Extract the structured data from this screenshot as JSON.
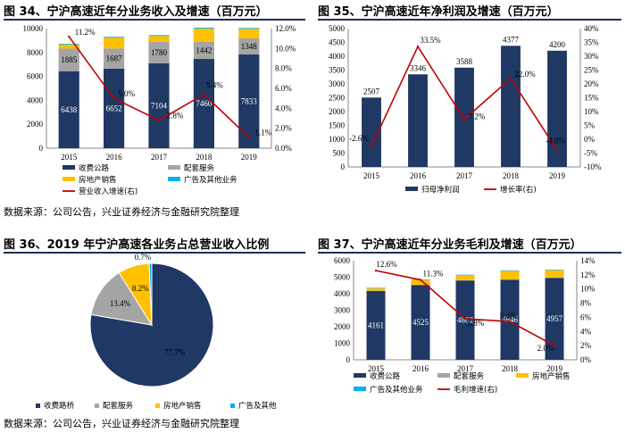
{
  "titles": {
    "fig34": "图 34、宁沪高速近年分业务收入及增速（百万元）",
    "fig35": "图 35、宁沪高速近年净利润及增速（百万元）",
    "fig36": "图 36、2019 年宁沪高速各业务占总营业收入比例",
    "fig37": "图 37、宁沪高速近年分业务毛利及增速（百万元）"
  },
  "sources": {
    "top": "数据来源：公司公告，兴业证券经济与金融研究院整理",
    "bottom": "数据来源：公司公告，兴业证券经济与金融研究院整理"
  },
  "colors": {
    "navy": "#1f3864",
    "gray": "#a5a5a5",
    "gold": "#ffc000",
    "cyan": "#00b0f0",
    "red": "#c00000",
    "rule": "#1f2d5c"
  },
  "chart_data": [
    {
      "id": "fig34",
      "type": "bar",
      "stacked": true,
      "title": "图 34、宁沪高速近年分业务收入及增速（百万元）",
      "categories": [
        "2015",
        "2016",
        "2017",
        "2018",
        "2019"
      ],
      "series": [
        {
          "name": "收费公路",
          "values": [
            6438,
            6652,
            7104,
            7460,
            7833
          ],
          "labels": [
            "6438",
            "6652",
            "7104",
            "7460",
            "7833"
          ]
        },
        {
          "name": "配套服务",
          "values": [
            1885,
            1687,
            1780,
            1442,
            1348
          ],
          "labels": [
            "1885",
            "1687",
            "1780",
            "1442",
            "1348"
          ]
        },
        {
          "name": "房地产销售",
          "values": [
            350,
            900,
            500,
            1100,
            800
          ]
        },
        {
          "name": "广告及其他业务",
          "values": [
            60,
            70,
            70,
            70,
            70
          ]
        }
      ],
      "line": {
        "name": "营业收入增速(右)",
        "values": [
          11.2,
          5.0,
          2.8,
          5.4,
          1.1
        ],
        "labels": [
          "11.2%",
          "5.0%",
          "2.8%",
          "5.4%",
          "1.1%"
        ]
      },
      "ylim": [
        0,
        10000
      ],
      "yticks": [
        "0",
        "2000",
        "4000",
        "6000",
        "8000",
        "10000"
      ],
      "y2lim": [
        0,
        12
      ],
      "y2ticks": [
        "0.0%",
        "2.0%",
        "4.0%",
        "6.0%",
        "8.0%",
        "10.0%",
        "12.0%"
      ],
      "legend": [
        "收费公路",
        "配套服务",
        "房地产销售",
        "广告及其他业务",
        "营业收入增速(右)"
      ]
    },
    {
      "id": "fig35",
      "type": "bar",
      "title": "图 35、宁沪高速近年净利润及增速（百万元）",
      "categories": [
        "2015",
        "2016",
        "2017",
        "2018",
        "2019"
      ],
      "series": [
        {
          "name": "归母净利润",
          "values": [
            2507,
            3346,
            3588,
            4377,
            4200
          ],
          "labels": [
            "2507",
            "3346",
            "3588",
            "4377",
            "4200"
          ]
        }
      ],
      "line": {
        "name": "增长率(右)",
        "values": [
          -2.6,
          33.5,
          7.2,
          22.0,
          -4.0
        ],
        "labels": [
          "-2.6%",
          "33.5%",
          "7.2%",
          "22.0%",
          "-4.0%"
        ]
      },
      "ylim": [
        0,
        5000
      ],
      "yticks": [
        "0",
        "500",
        "1000",
        "1500",
        "2000",
        "2500",
        "3000",
        "3500",
        "4000",
        "4500",
        "5000"
      ],
      "y2lim": [
        -10,
        40
      ],
      "y2ticks": [
        "-10%",
        "-5%",
        "0%",
        "5%",
        "10%",
        "15%",
        "20%",
        "25%",
        "30%",
        "35%",
        "40%"
      ],
      "legend": [
        "归母净利润",
        "增长率(右)"
      ]
    },
    {
      "id": "fig36",
      "type": "pie",
      "title": "图 36、2019 年宁沪高速各业务占总营业收入比例",
      "slices": [
        {
          "name": "收费路桥",
          "value": 77.7,
          "label": "77.7%"
        },
        {
          "name": "配套服务",
          "value": 13.4,
          "label": "13.4%"
        },
        {
          "name": "房地产销售",
          "value": 8.2,
          "label": "8.2%"
        },
        {
          "name": "广告及其他",
          "value": 0.7,
          "label": "0.7%"
        }
      ],
      "legend": [
        "收费路桥",
        "配套服务",
        "房地产销售",
        "广告及其他"
      ]
    },
    {
      "id": "fig37",
      "type": "bar",
      "stacked": true,
      "title": "图 37、宁沪高速近年分业务毛利及增速（百万元）",
      "categories": [
        "2015",
        "2016",
        "2017",
        "2018",
        "2019"
      ],
      "series": [
        {
          "name": "收费公路",
          "values": [
            4161,
            4525,
            4802,
            4846,
            4957
          ],
          "labels": [
            "4161",
            "4525",
            "4802",
            "4846",
            "4957"
          ]
        },
        {
          "name": "配套服务",
          "values": [
            20,
            20,
            20,
            20,
            20
          ]
        },
        {
          "name": "房地产销售",
          "values": [
            150,
            300,
            300,
            520,
            450
          ]
        },
        {
          "name": "广告及其他业务",
          "values": [
            30,
            30,
            30,
            30,
            30
          ]
        }
      ],
      "line": {
        "name": "毛利增速(右)",
        "values": [
          12.6,
          11.3,
          5.8,
          5.4,
          2.0
        ],
        "labels": [
          "12.6%",
          "11.3%",
          "5.8%",
          "5.4%",
          "2.0%"
        ]
      },
      "ylim": [
        0,
        6000
      ],
      "yticks": [
        "0",
        "1000",
        "2000",
        "3000",
        "4000",
        "5000",
        "6000"
      ],
      "y2lim": [
        0,
        14
      ],
      "y2ticks": [
        "0%",
        "2%",
        "4%",
        "6%",
        "8%",
        "10%",
        "12%",
        "14%"
      ],
      "legend": [
        "收费公路",
        "配套服务",
        "房地产销售",
        "广告及其他业务",
        "毛利增速(右)"
      ]
    }
  ]
}
